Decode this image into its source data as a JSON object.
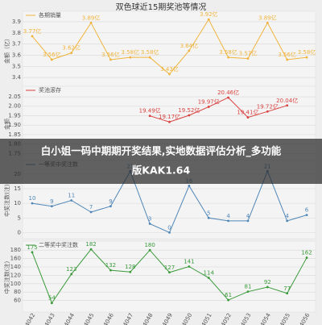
{
  "title": "双色球近15期奖池等情况",
  "banner": [
    "白小姐一码中期期开奖结果,实地数据评估分析_多功能",
    "版KAK1.64"
  ],
  "chart_data": [
    {
      "type": "line",
      "ylabel": "金额（亿）",
      "series": [
        {
          "name": "各期销量",
          "color": "#f0b43c",
          "values": [
            3.77,
            3.56,
            3.62,
            3.89,
            3.56,
            3.58,
            3.58,
            3.43,
            3.64,
            3.92,
            3.58,
            3.57,
            3.89,
            3.56,
            3.58
          ],
          "value_labels": [
            "3.77亿",
            "3.56亿",
            "3.62亿",
            "3.89亿",
            "3.56亿",
            "3.58亿",
            "3.58亿",
            "3.43亿",
            "3.64亿",
            "3.92亿",
            "3.58亿",
            "3.57亿",
            "3.89亿",
            "3.56亿",
            "3.58亿"
          ]
        }
      ],
      "ylim": [
        3.35,
        3.95
      ],
      "yticks": [
        3.4,
        3.5,
        3.6,
        3.7,
        3.8,
        3.9
      ],
      "grid": true
    },
    {
      "type": "line",
      "ylabel": "金额",
      "series": [
        {
          "name": "奖池滚存",
          "color": "#d9423f",
          "values": [
            null,
            null,
            null,
            null,
            null,
            null,
            19.49,
            19.17,
            19.52,
            19.97,
            20.46,
            19.41,
            19.72,
            20.04
          ],
          "value_labels": [
            null,
            null,
            null,
            null,
            null,
            null,
            "19.49亿",
            "19.17亿",
            "19.52亿",
            "19.97亿",
            "20.46亿",
            "19.41亿",
            "19.72亿",
            "20.04亿"
          ]
        }
      ],
      "ylim": [
        17.3,
        20.8
      ],
      "yticks": [
        {
          "value": 17.5,
          "label": "1.75"
        },
        {
          "value": 18,
          "label": "1.80"
        },
        {
          "value": 18.5,
          "label": "1.85"
        },
        {
          "value": 19,
          "label": "1.90"
        },
        {
          "value": 19.5,
          "label": "1.95"
        },
        {
          "value": 20,
          "label": "2.00"
        },
        {
          "value": 20.5,
          "label": "2.05"
        }
      ],
      "grid": true
    },
    {
      "type": "line",
      "ylabel": "中奖注数(注)",
      "series": [
        {
          "name": "一等奖中奖注数",
          "color": "#4f86b8",
          "values": [
            10,
            9,
            11,
            7,
            9,
            21,
            3,
            0,
            16,
            5,
            4,
            4,
            21,
            4,
            6
          ]
        }
      ],
      "ylim": [
        -1,
        23
      ],
      "yticks": [
        0,
        5,
        10,
        15,
        20
      ],
      "grid": true
    },
    {
      "type": "line",
      "ylabel": "中奖注数(注)",
      "categories": [
        "2024042",
        "2024043",
        "2024044",
        "2024045",
        "2024046",
        "2024047",
        "2024048",
        "2024049",
        "2024050",
        "2024051",
        "2024052",
        "2024053",
        "2024054",
        "2024055",
        "2024056"
      ],
      "series": [
        {
          "name": "二等奖中奖注数",
          "color": "#3a9a3a",
          "values": [
            175,
            54,
            123,
            182,
            132,
            128,
            180,
            127,
            141,
            114,
            61,
            81,
            92,
            77,
            162
          ]
        }
      ],
      "ylim": [
        40,
        190
      ],
      "yticks": [
        60,
        80,
        100,
        120,
        140,
        160,
        180
      ],
      "grid": true
    }
  ]
}
